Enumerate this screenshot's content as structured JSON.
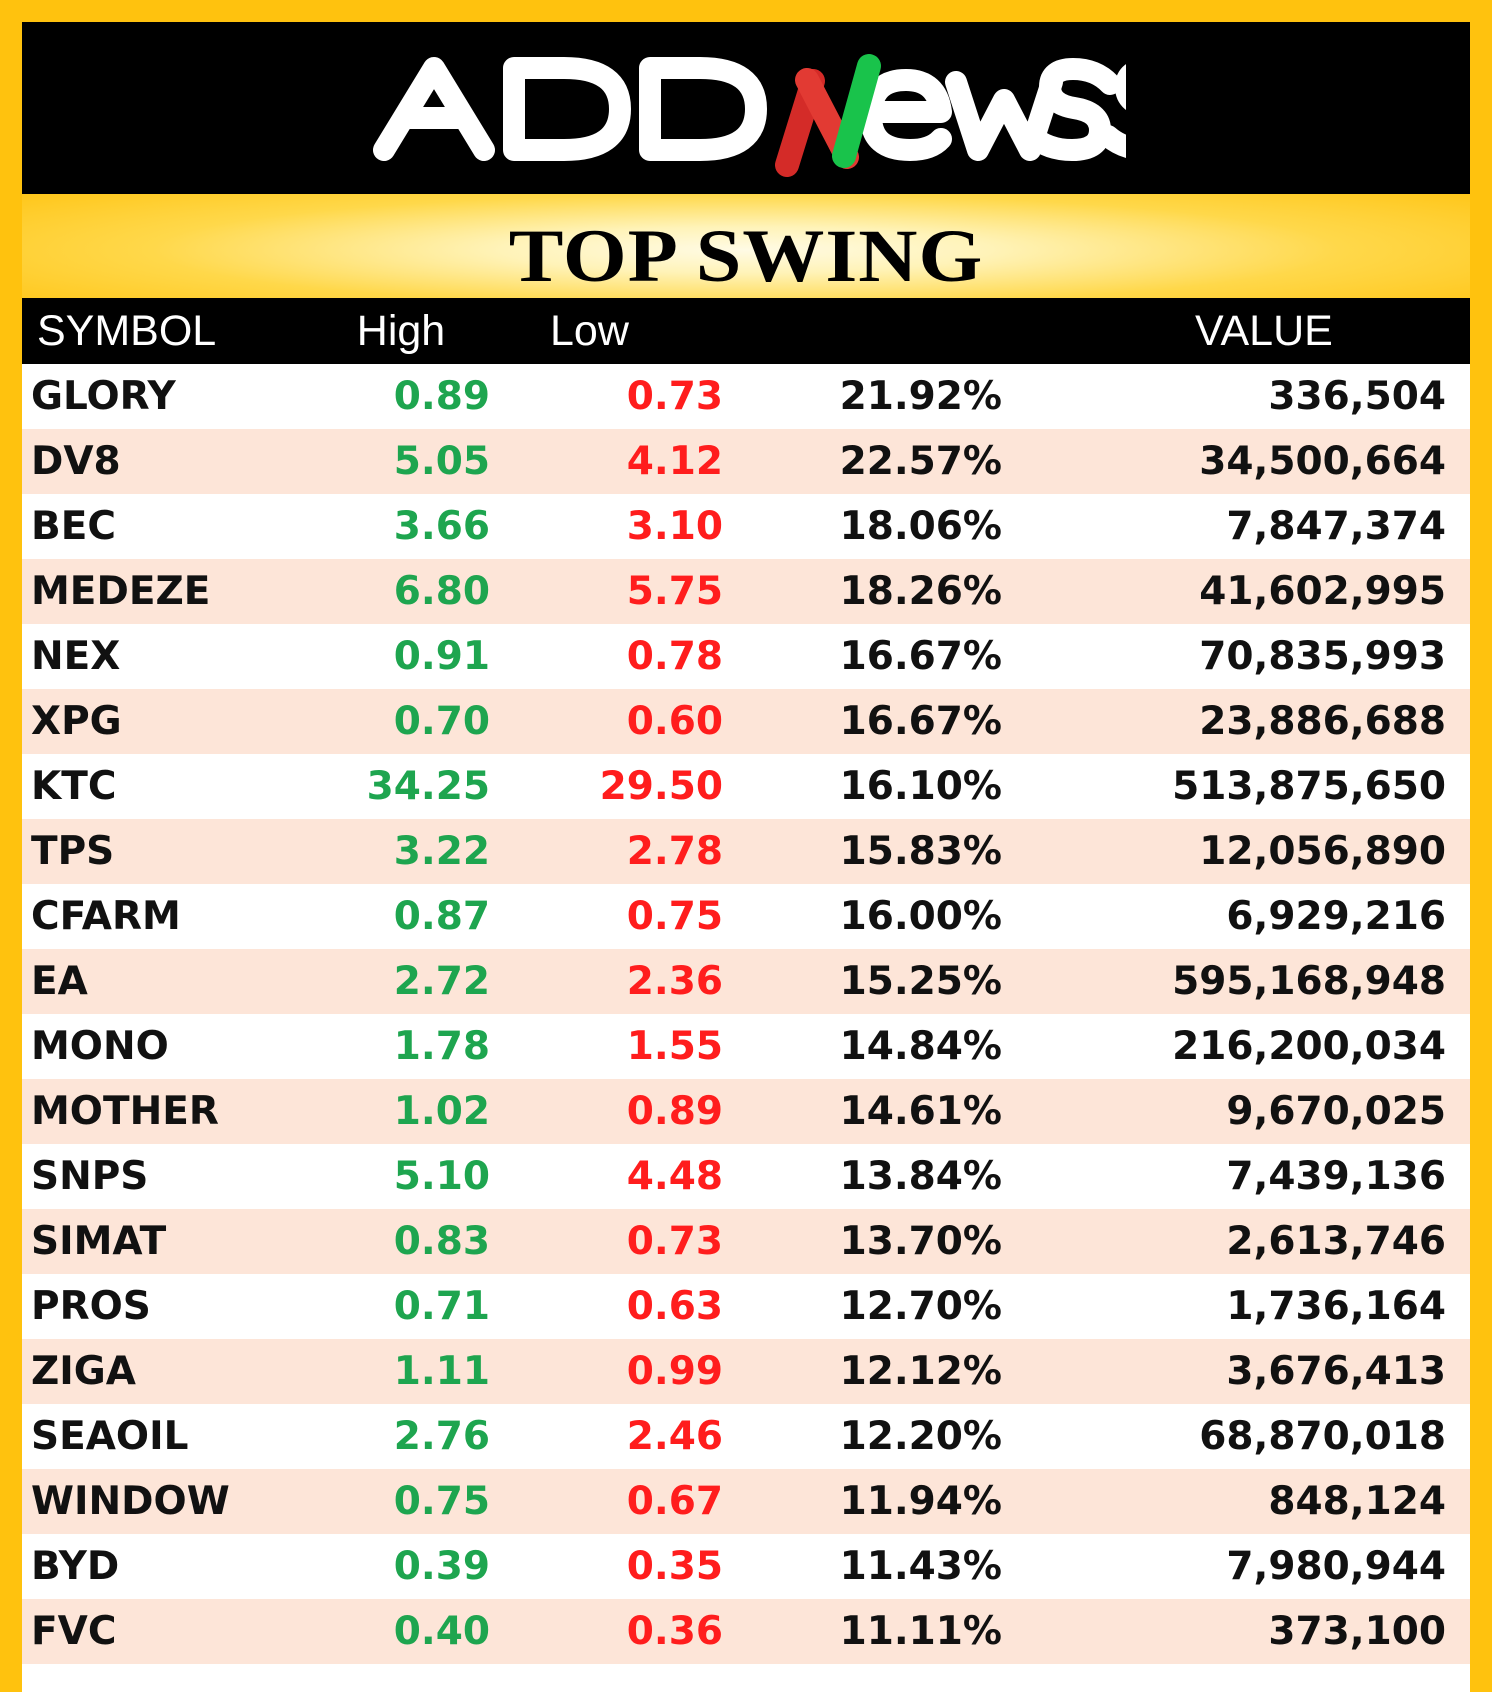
{
  "brand": {
    "logo_text": "ADDNeWSS",
    "brand_colors": {
      "accent_red": "#d42b28",
      "accent_green": "#19c34b",
      "bar_color": "#000000",
      "frame_color": "#ffc20e"
    }
  },
  "page": {
    "title": "TOP SWING"
  },
  "table": {
    "headers": {
      "symbol": "SYMBOL",
      "high": "High",
      "low": "Low",
      "change": "",
      "value": "VALUE"
    },
    "rows": [
      {
        "symbol": "GLORY",
        "high": "0.89",
        "low": "0.73",
        "change": "21.92%",
        "value": "336,504"
      },
      {
        "symbol": "DV8",
        "high": "5.05",
        "low": "4.12",
        "change": "22.57%",
        "value": "34,500,664"
      },
      {
        "symbol": "BEC",
        "high": "3.66",
        "low": "3.10",
        "change": "18.06%",
        "value": "7,847,374"
      },
      {
        "symbol": "MEDEZE",
        "high": "6.80",
        "low": "5.75",
        "change": "18.26%",
        "value": "41,602,995"
      },
      {
        "symbol": "NEX",
        "high": "0.91",
        "low": "0.78",
        "change": "16.67%",
        "value": "70,835,993"
      },
      {
        "symbol": "XPG",
        "high": "0.70",
        "low": "0.60",
        "change": "16.67%",
        "value": "23,886,688"
      },
      {
        "symbol": "KTC",
        "high": "34.25",
        "low": "29.50",
        "change": "16.10%",
        "value": "513,875,650"
      },
      {
        "symbol": "TPS",
        "high": "3.22",
        "low": "2.78",
        "change": "15.83%",
        "value": "12,056,890"
      },
      {
        "symbol": "CFARM",
        "high": "0.87",
        "low": "0.75",
        "change": "16.00%",
        "value": "6,929,216"
      },
      {
        "symbol": "EA",
        "high": "2.72",
        "low": "2.36",
        "change": "15.25%",
        "value": "595,168,948"
      },
      {
        "symbol": "MONO",
        "high": "1.78",
        "low": "1.55",
        "change": "14.84%",
        "value": "216,200,034"
      },
      {
        "symbol": "MOTHER",
        "high": "1.02",
        "low": "0.89",
        "change": "14.61%",
        "value": "9,670,025"
      },
      {
        "symbol": "SNPS",
        "high": "5.10",
        "low": "4.48",
        "change": "13.84%",
        "value": "7,439,136"
      },
      {
        "symbol": "SIMAT",
        "high": "0.83",
        "low": "0.73",
        "change": "13.70%",
        "value": "2,613,746"
      },
      {
        "symbol": "PROS",
        "high": "0.71",
        "low": "0.63",
        "change": "12.70%",
        "value": "1,736,164"
      },
      {
        "symbol": "ZIGA",
        "high": "1.11",
        "low": "0.99",
        "change": "12.12%",
        "value": "3,676,413"
      },
      {
        "symbol": "SEAOIL",
        "high": "2.76",
        "low": "2.46",
        "change": "12.20%",
        "value": "68,870,018"
      },
      {
        "symbol": "WINDOW",
        "high": "0.75",
        "low": "0.67",
        "change": "11.94%",
        "value": "848,124"
      },
      {
        "symbol": "BYD",
        "high": "0.39",
        "low": "0.35",
        "change": "11.43%",
        "value": "7,980,944"
      },
      {
        "symbol": "FVC",
        "high": "0.40",
        "low": "0.36",
        "change": "11.11%",
        "value": "373,100"
      }
    ]
  },
  "colors": {
    "high_value": "#1ea54f",
    "low_value": "#ff1d1d",
    "row_alt": "#fde5d8",
    "row_base": "#ffffff",
    "header_bg": "#000000",
    "header_text": "#ffffff"
  }
}
